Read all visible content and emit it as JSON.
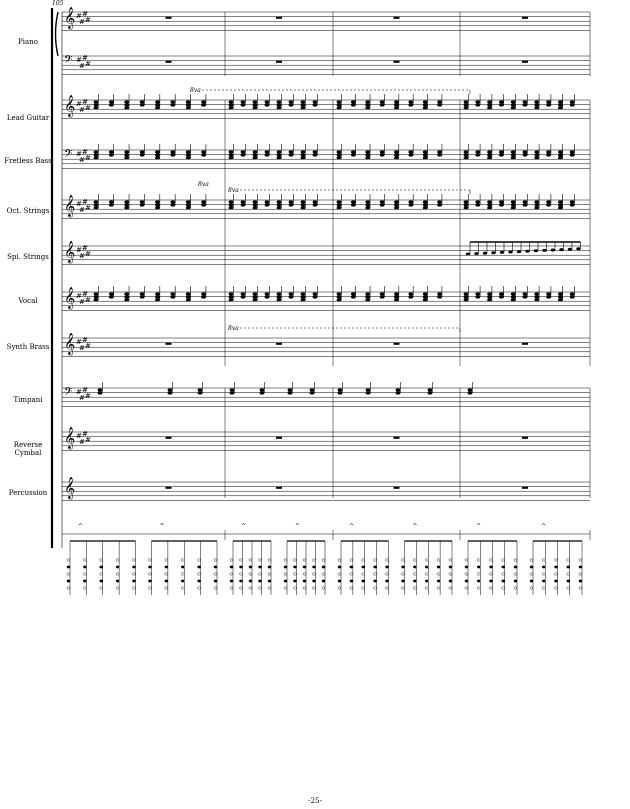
{
  "measure_number": "105",
  "page_number": "-25-",
  "instruments": [
    {
      "name": "Piano"
    },
    {
      "name": "Lead Guitar"
    },
    {
      "name": "Fretless Bass"
    },
    {
      "name": "Oct. Strings"
    },
    {
      "name": "Spi. Strings"
    },
    {
      "name": "Vocal"
    },
    {
      "name": "Synth Brass"
    },
    {
      "name": "Timpani"
    },
    {
      "name": "Reverse Cymbal"
    },
    {
      "name": "Percussion"
    }
  ],
  "ottava_marks": [
    "8va",
    "8va",
    "8va",
    "8va"
  ],
  "accent_mark": "^",
  "bar_count": 4
}
